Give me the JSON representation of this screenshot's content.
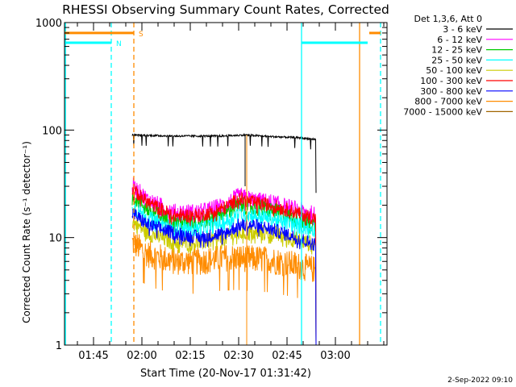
{
  "chart_data": {
    "type": "line",
    "title": "RHESSI Observing Summary Count Rates, Corrected",
    "xlabel": "Start Time (20-Nov-17 01:31:42)",
    "ylabel": "Corrected Count Rate (s⁻¹ detector⁻¹)",
    "x_tick_labels": [
      "01:45",
      "02:00",
      "02:15",
      "02:30",
      "02:45",
      "03:00"
    ],
    "x_tick_minutes": [
      105,
      120,
      135,
      150,
      165,
      180
    ],
    "xlim": [
      96,
      196
    ],
    "y_scale": "log",
    "ylim": [
      1,
      1000
    ],
    "y_tick_labels": [
      "1",
      "10",
      "100",
      "1000"
    ],
    "y_tick_values": [
      1,
      10,
      100,
      1000
    ],
    "legend_header": "Det 1,3,6, Att 0",
    "legend_position": "right",
    "timestamp": "2-Sep-2022 09:10",
    "series": [
      {
        "name": "3 - 6 keV",
        "color": "#000000",
        "t": [
          117,
          130,
          145,
          152,
          160,
          168,
          174
        ],
        "values": [
          90,
          88,
          88,
          90,
          87,
          85,
          82
        ]
      },
      {
        "name": "6 - 12 keV",
        "color": "#ff00ff",
        "t": [
          117,
          122,
          130,
          138,
          146,
          150,
          155,
          160,
          168,
          174
        ],
        "values": [
          30,
          22,
          17,
          17,
          20,
          24,
          22,
          21,
          18,
          16
        ]
      },
      {
        "name": "12 - 25 keV",
        "color": "#00cc00",
        "t": [
          117,
          122,
          130,
          138,
          146,
          150,
          155,
          160,
          168,
          174
        ],
        "values": [
          25,
          18,
          14,
          14,
          17,
          20,
          19,
          18,
          15,
          13
        ]
      },
      {
        "name": "25 - 50 keV",
        "color": "#00ffff",
        "t": [
          117,
          122,
          130,
          138,
          146,
          150,
          155,
          160,
          168,
          174
        ],
        "values": [
          20,
          15,
          12,
          12,
          14,
          17,
          16,
          15,
          13,
          12
        ]
      },
      {
        "name": "50 - 100 keV",
        "color": "#cccc00",
        "t": [
          117,
          122,
          130,
          138,
          146,
          150,
          155,
          160,
          168,
          174
        ],
        "values": [
          14,
          11,
          9,
          9,
          10,
          11,
          11,
          11,
          9.5,
          8.5
        ]
      },
      {
        "name": "100 - 300 keV",
        "color": "#ff0000",
        "t": [
          117,
          122,
          130,
          138,
          146,
          150,
          155,
          160,
          168,
          174
        ],
        "values": [
          28,
          21,
          16,
          16,
          19,
          23,
          21,
          20,
          17,
          15
        ]
      },
      {
        "name": "300 - 800 keV",
        "color": "#0000ff",
        "t": [
          117,
          122,
          130,
          138,
          146,
          150,
          155,
          160,
          168,
          174
        ],
        "values": [
          17,
          13,
          11,
          10,
          11,
          13,
          13,
          12,
          10,
          8.5
        ]
      },
      {
        "name": "800 - 7000 keV",
        "color": "#ff8c00",
        "t": [
          117,
          122,
          130,
          138,
          146,
          150,
          155,
          160,
          168,
          174
        ],
        "values": [
          9,
          7,
          6,
          6,
          6.5,
          6.5,
          6.3,
          6.2,
          5.5,
          5
        ]
      },
      {
        "name": "7000 - 15000 keV",
        "color": "#a06400",
        "t": [],
        "values": []
      }
    ],
    "flag_lines": [
      {
        "label": "S",
        "color": "#ff8c00",
        "level": 800,
        "segments": [
          [
            96,
            117.5
          ],
          [
            190.5,
            194
          ]
        ]
      },
      {
        "label": "N",
        "color": "#00ffff",
        "level": 650,
        "segments": [
          [
            96,
            110.5
          ],
          [
            169.5,
            190
          ]
        ]
      }
    ],
    "vertical_markers": [
      {
        "t": 96.3,
        "color": "#00ffff",
        "style": "solid"
      },
      {
        "t": 110.5,
        "color": "#00ffff",
        "style": "dashed"
      },
      {
        "t": 117.5,
        "color": "#ff8c00",
        "style": "dashed"
      },
      {
        "t": 169.5,
        "color": "#00ffff",
        "style": "solid"
      },
      {
        "t": 187.5,
        "color": "#ff8c00",
        "style": "solid"
      },
      {
        "t": 194,
        "color": "#00ffff",
        "style": "dashed"
      }
    ]
  }
}
